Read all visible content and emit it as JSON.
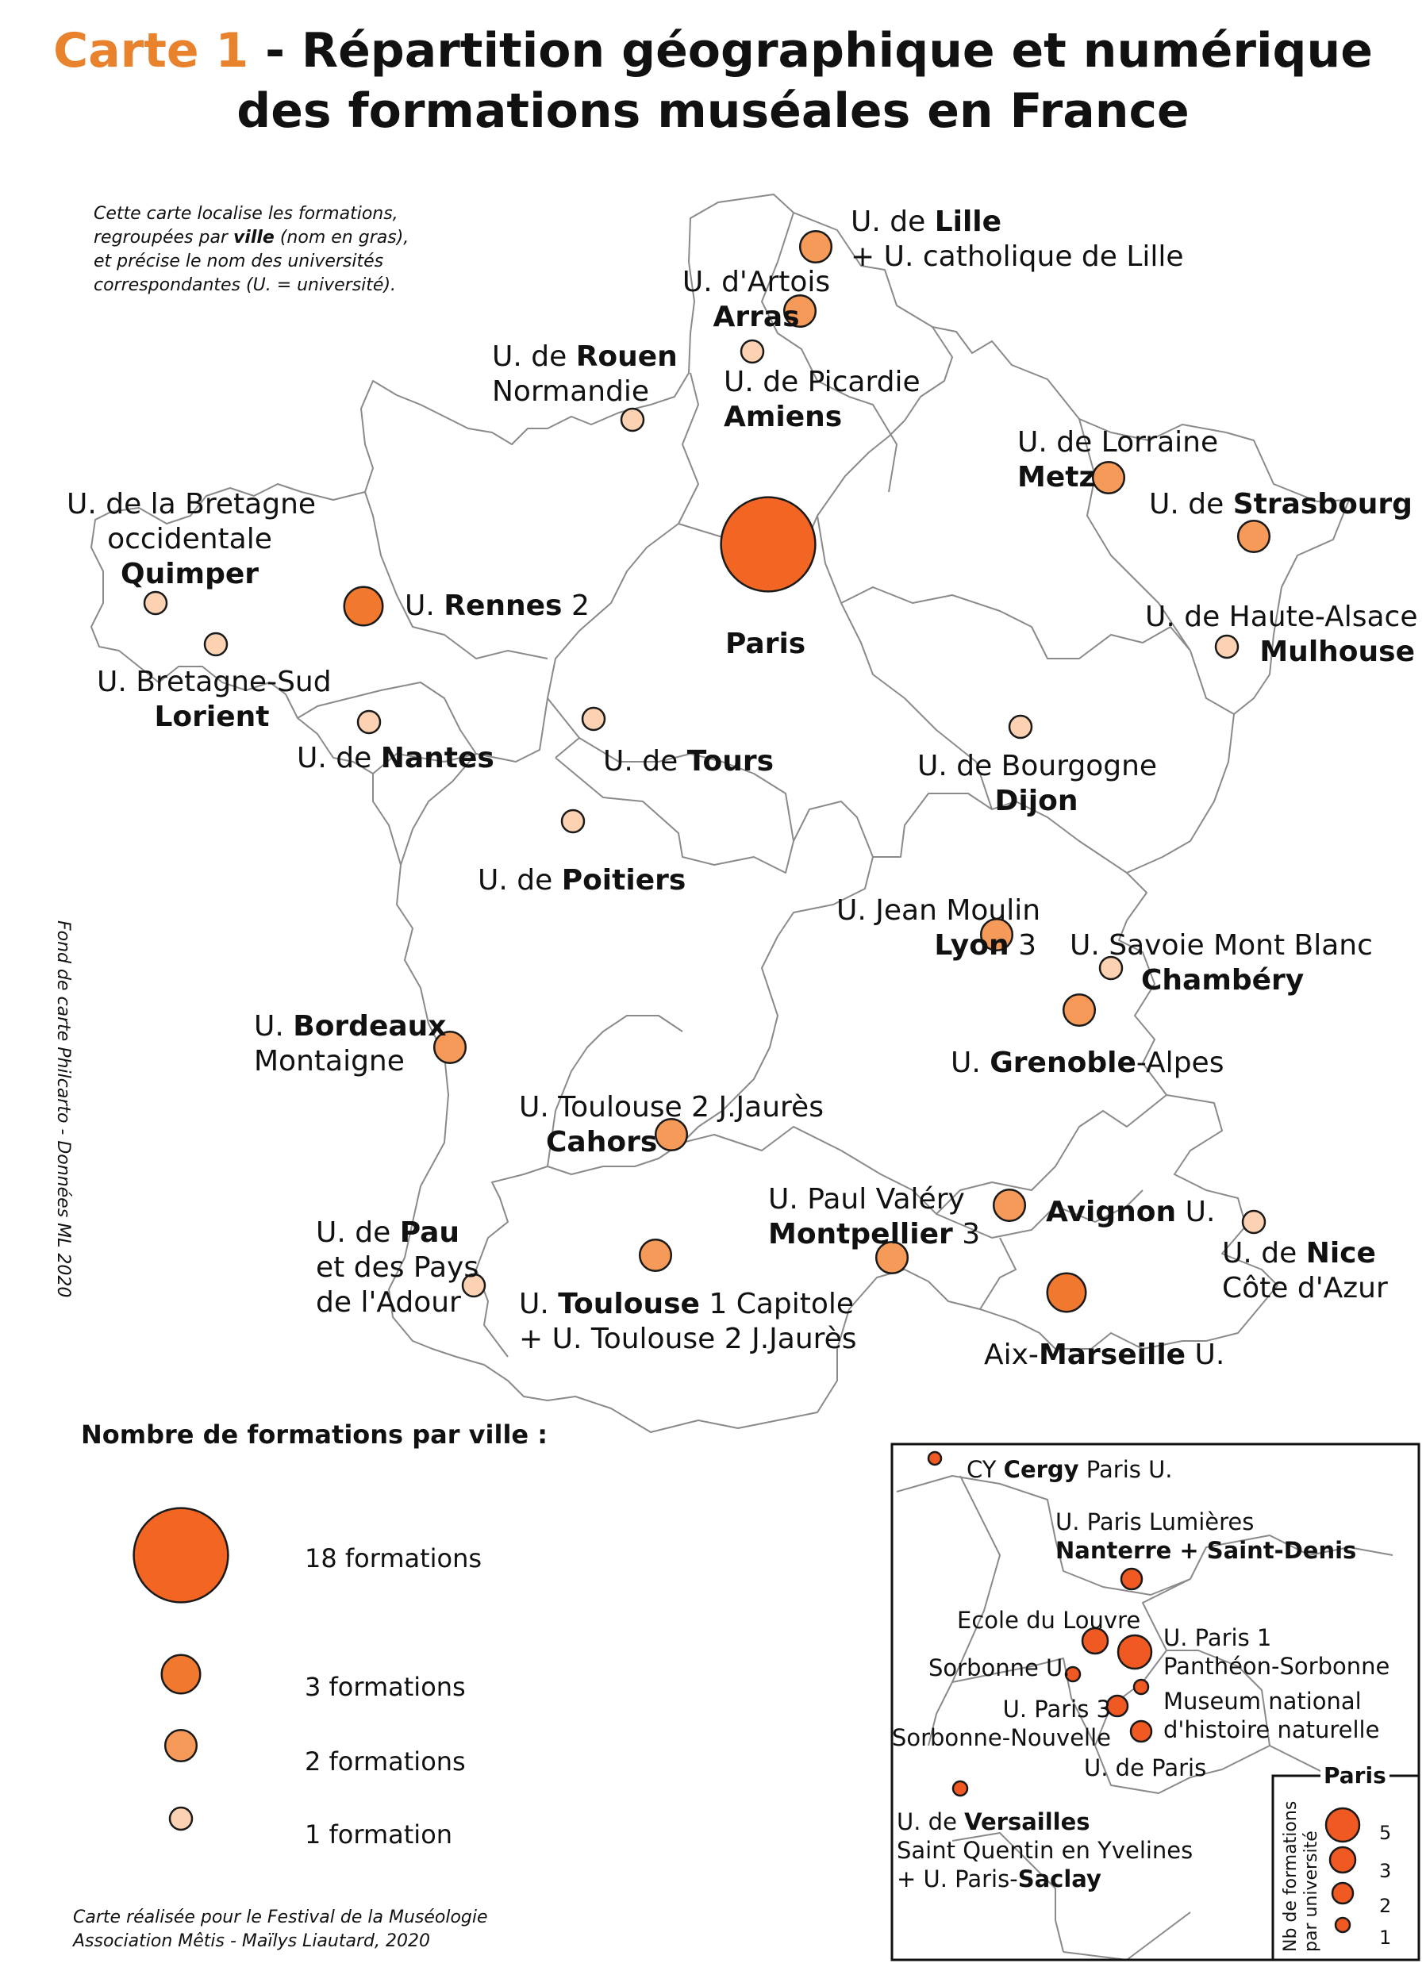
{
  "title": {
    "number": "Carte 1",
    "line1_rest": " - Répartition géographique et numérique",
    "line2": "des formations muséales en France"
  },
  "note_intro": {
    "line1": "Cette carte localise les formations,",
    "line2_pre": "regroupées par ",
    "line2_bold": "ville",
    "line2_post": " (nom en gras),",
    "line3": "et précise le nom des universités",
    "line4": "correspondantes (U. = université)."
  },
  "vertical_credit": "Fond de carte Philcarto - Données ML 2020",
  "bottom_credit": {
    "line1": "Carte réalisée pour le Festival de la Muséologie",
    "line2": "Association Mêtis - Maïlys Liautard, 2020"
  },
  "colors": {
    "one": "#fcd2b2",
    "two": "#f59a58",
    "three": "#f1782f",
    "eighteen": "#f26522",
    "inset_dot": "#f05a22",
    "stroke": "#1a1a1a",
    "border": "#8a8a8a",
    "title_accent": "#e8822c"
  },
  "cities": [
    {
      "id": "lille",
      "count": 2,
      "l1_pre": "U. de ",
      "l1_bold": "Lille",
      "l2": "+ U. catholique de Lille"
    },
    {
      "id": "arras",
      "count": 2,
      "l1": "U. d'Artois",
      "l2_bold": "Arras"
    },
    {
      "id": "amiens",
      "count": 1,
      "l1": "U. de Picardie",
      "l2_bold": "Amiens"
    },
    {
      "id": "rouen",
      "count": 1,
      "l1_pre": "U. de ",
      "l1_bold": "Rouen",
      "l2": "Normandie"
    },
    {
      "id": "paris",
      "count": 18,
      "l1_bold": "Paris"
    },
    {
      "id": "metz",
      "count": 2,
      "l1": "U. de Lorraine",
      "l2_bold": "Metz"
    },
    {
      "id": "strasbourg",
      "count": 2,
      "l1_pre": "U. de ",
      "l1_bold": "Strasbourg"
    },
    {
      "id": "mulhouse",
      "count": 1,
      "l1": "U. de Haute-Alsace",
      "l2_bold": "Mulhouse"
    },
    {
      "id": "quimper",
      "count": 1,
      "l1": "U. de la Bretagne",
      "l2": "occidentale",
      "l3_bold": "Quimper"
    },
    {
      "id": "rennes",
      "count": 3,
      "l1_pre": "U. ",
      "l1_bold": "Rennes",
      "l1_post": " 2"
    },
    {
      "id": "lorient",
      "count": 1,
      "l1": "U. Bretagne-Sud",
      "l2_bold": "Lorient"
    },
    {
      "id": "nantes",
      "count": 1,
      "l1_pre": "U. de ",
      "l1_bold": "Nantes"
    },
    {
      "id": "tours",
      "count": 1,
      "l1_pre": "U. de ",
      "l1_bold": "Tours"
    },
    {
      "id": "dijon",
      "count": 1,
      "l1": "U. de Bourgogne",
      "l2_bold": "Dijon"
    },
    {
      "id": "poitiers",
      "count": 1,
      "l1_pre": "U. de ",
      "l1_bold": "Poitiers"
    },
    {
      "id": "lyon",
      "count": 2,
      "l1": "U. Jean Moulin",
      "l2_bold": "Lyon",
      "l2_post": " 3"
    },
    {
      "id": "chambery",
      "count": 1,
      "l1": "U. Savoie Mont Blanc",
      "l2_bold": "Chambéry"
    },
    {
      "id": "grenoble",
      "count": 2,
      "l1_pre": "U. ",
      "l1_bold": "Grenoble",
      "l1_post": "-Alpes"
    },
    {
      "id": "bordeaux",
      "count": 2,
      "l1_pre": "U. ",
      "l1_bold": "Bordeaux",
      "l2": "Montaigne"
    },
    {
      "id": "cahors",
      "count": 2,
      "l1": "U. Toulouse 2 J.Jaurès",
      "l2_bold": "Cahors"
    },
    {
      "id": "montpellier",
      "count": 2,
      "l1": "U. Paul Valéry",
      "l2_bold": "Montpellier",
      "l2_post": " 3"
    },
    {
      "id": "avignon",
      "count": 2,
      "l1_bold": "Avignon",
      "l1_post": " U."
    },
    {
      "id": "pau",
      "count": 1,
      "l1_pre": "U. de ",
      "l1_bold": "Pau",
      "l2": "et des Pays",
      "l3": "de l'Adour"
    },
    {
      "id": "toulouse",
      "count": 2,
      "l1_pre": "U. ",
      "l1_bold": "Toulouse",
      "l1_post": " 1 Capitole",
      "l2": "+ U. Toulouse 2 J.Jaurès"
    },
    {
      "id": "nice",
      "count": 1,
      "l1_pre": "U. de ",
      "l1_bold": "Nice",
      "l2": "Côte d'Azur"
    },
    {
      "id": "marseille",
      "count": 3,
      "l1_pre": "Aix-",
      "l1_bold": "Marseille",
      "l1_post": " U."
    }
  ],
  "legend": {
    "title": "Nombre de formations par ville :",
    "items": [
      {
        "count": 18,
        "label": "18 formations"
      },
      {
        "count": 3,
        "label": "3 formations"
      },
      {
        "count": 2,
        "label": "2 formations"
      },
      {
        "count": 1,
        "label": "1 formation"
      }
    ]
  },
  "inset": {
    "cergy": {
      "pre": "CY ",
      "bold": "Cergy",
      "post": " Paris U."
    },
    "nanterre": {
      "l1": "U. Paris Lumières",
      "l2_bold": "Nanterre + Saint-Denis"
    },
    "louvre": "Ecole du Louvre",
    "paris1": {
      "l1": "U. Paris 1",
      "l2": "Panthéon-Sorbonne"
    },
    "sorbonne": "Sorbonne U.",
    "paris3": {
      "l1": "U. Paris 3",
      "l2": "Sorbonne-Nouvelle"
    },
    "museum": {
      "l1": "Museum national",
      "l2": "d'histoire naturelle"
    },
    "uparis": "U. de Paris",
    "versailles": {
      "l1_pre": "U. de ",
      "l1_bold": "Versailles",
      "l2": "Saint Quentin en Yvelines",
      "l3_pre": "+ U. Paris-",
      "l3_bold": "Saclay"
    },
    "legend": {
      "title": "Paris",
      "axis": "Nb de formations par université",
      "values": [
        "5",
        "3",
        "2",
        "1"
      ]
    }
  }
}
